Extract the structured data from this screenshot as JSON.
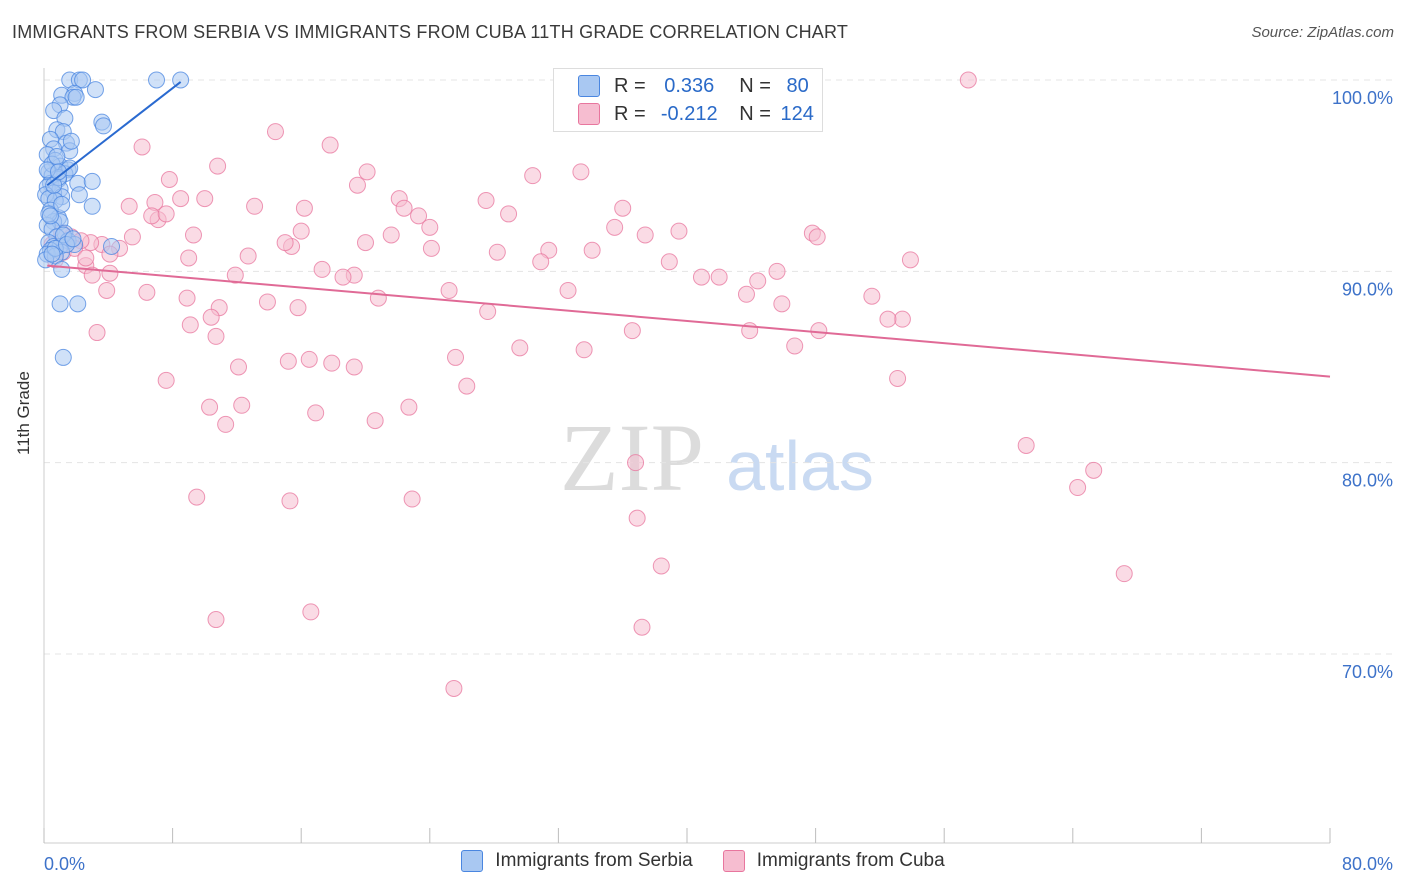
{
  "title": "IMMIGRANTS FROM SERBIA VS IMMIGRANTS FROM CUBA 11TH GRADE CORRELATION CHART",
  "source": "Source: ZipAtlas.com",
  "watermark": {
    "zip": "ZIP",
    "atlas": "atlas"
  },
  "colors": {
    "serbia": "#4a86e0",
    "serbia_fill": "#a9c8f2",
    "cuba": "#e8769e",
    "cuba_fill": "#f6bdd0",
    "tick_text": "#3d72c9"
  },
  "legend": {
    "rows": [
      {
        "r_label": "R =",
        "r_value": "0.336",
        "n_label": "N =",
        "n_value": "80"
      },
      {
        "r_label": "R =",
        "r_value": "-0.212",
        "n_label": "N =",
        "n_value": "124"
      }
    ]
  },
  "bottom_legend": {
    "serbia": "Immigrants from Serbia",
    "cuba": "Immigrants from Cuba"
  },
  "chart_data": {
    "type": "scatter",
    "xlabel": "",
    "ylabel": "11th Grade",
    "xlim": [
      0,
      80
    ],
    "ylim": [
      60,
      102
    ],
    "x_tick_labels": {
      "left": "0.0%",
      "right": "80.0%"
    },
    "y_ticks": [
      {
        "value": 100,
        "label": "100.0%"
      },
      {
        "value": 90,
        "label": "90.0%"
      },
      {
        "value": 80,
        "label": "80.0%"
      },
      {
        "value": 70,
        "label": "70.0%"
      }
    ],
    "grid": "horizontal dashed",
    "series": [
      {
        "name": "Immigrants from Serbia",
        "trend": {
          "x": [
            0.2,
            8.5
          ],
          "y": [
            94.5,
            99.9
          ]
        },
        "points": [
          [
            1.6,
            100
          ],
          [
            2.2,
            100
          ],
          [
            2.4,
            100
          ],
          [
            7.0,
            100
          ],
          [
            8.5,
            100
          ],
          [
            1.9,
            99.3
          ],
          [
            1.1,
            99.2
          ],
          [
            3.2,
            99.5
          ],
          [
            1.8,
            99.1
          ],
          [
            1.0,
            98.7
          ],
          [
            0.6,
            98.4
          ],
          [
            1.3,
            98.0
          ],
          [
            3.6,
            97.8
          ],
          [
            3.7,
            97.6
          ],
          [
            0.8,
            97.4
          ],
          [
            1.2,
            97.3
          ],
          [
            0.4,
            96.9
          ],
          [
            1.4,
            96.7
          ],
          [
            0.6,
            96.4
          ],
          [
            1.6,
            96.3
          ],
          [
            0.2,
            96.1
          ],
          [
            0.7,
            95.8
          ],
          [
            1.0,
            95.5
          ],
          [
            1.5,
            95.3
          ],
          [
            0.3,
            95.2
          ],
          [
            0.5,
            95.0
          ],
          [
            1.3,
            95.1
          ],
          [
            0.9,
            94.8
          ],
          [
            0.4,
            94.6
          ],
          [
            2.1,
            94.6
          ],
          [
            0.2,
            94.4
          ],
          [
            1.0,
            94.3
          ],
          [
            3.0,
            94.7
          ],
          [
            0.6,
            94.1
          ],
          [
            0.1,
            94.0
          ],
          [
            1.1,
            93.9
          ],
          [
            2.2,
            94.0
          ],
          [
            0.3,
            93.8
          ],
          [
            0.7,
            93.7
          ],
          [
            3.0,
            93.4
          ],
          [
            0.4,
            93.2
          ],
          [
            0.9,
            92.8
          ],
          [
            0.6,
            92.6
          ],
          [
            1.0,
            92.6
          ],
          [
            0.2,
            92.4
          ],
          [
            0.5,
            92.2
          ],
          [
            1.3,
            92.0
          ],
          [
            0.8,
            91.8
          ],
          [
            1.5,
            91.6
          ],
          [
            0.3,
            91.5
          ],
          [
            1.9,
            91.4
          ],
          [
            0.6,
            91.3
          ],
          [
            1.0,
            91.3
          ],
          [
            4.2,
            91.3
          ],
          [
            0.4,
            91.1
          ],
          [
            1.1,
            91.0
          ],
          [
            0.2,
            90.9
          ],
          [
            0.7,
            90.8
          ],
          [
            0.1,
            90.6
          ],
          [
            1.1,
            90.1
          ],
          [
            1.0,
            88.3
          ],
          [
            2.1,
            88.3
          ],
          [
            1.2,
            85.5
          ],
          [
            0.5,
            95.6
          ],
          [
            0.8,
            96.0
          ],
          [
            1.7,
            96.8
          ],
          [
            2.0,
            99.1
          ],
          [
            0.3,
            93.0
          ],
          [
            0.9,
            94.9
          ],
          [
            1.6,
            95.4
          ],
          [
            0.4,
            92.9
          ],
          [
            1.2,
            91.9
          ],
          [
            0.7,
            91.2
          ],
          [
            1.4,
            91.4
          ],
          [
            0.5,
            90.9
          ],
          [
            0.2,
            95.3
          ],
          [
            1.1,
            93.5
          ],
          [
            0.6,
            94.5
          ],
          [
            1.8,
            91.7
          ],
          [
            0.9,
            95.2
          ]
        ]
      },
      {
        "name": "Immigrants from Cuba",
        "trend": {
          "x": [
            0.2,
            80
          ],
          "y": [
            90.3,
            84.5
          ]
        },
        "points": [
          [
            57.5,
            100
          ],
          [
            14.4,
            97.3
          ],
          [
            6.1,
            96.5
          ],
          [
            17.8,
            96.6
          ],
          [
            10.8,
            95.5
          ],
          [
            20.1,
            95.2
          ],
          [
            33.4,
            95.2
          ],
          [
            30.4,
            95.0
          ],
          [
            7.8,
            94.8
          ],
          [
            19.5,
            94.5
          ],
          [
            22.1,
            93.8
          ],
          [
            10.0,
            93.8
          ],
          [
            8.5,
            93.8
          ],
          [
            27.5,
            93.7
          ],
          [
            16.2,
            93.3
          ],
          [
            5.3,
            93.4
          ],
          [
            36.0,
            93.3
          ],
          [
            13.1,
            93.4
          ],
          [
            6.9,
            93.6
          ],
          [
            23.3,
            92.9
          ],
          [
            7.1,
            92.7
          ],
          [
            28.9,
            93.0
          ],
          [
            24.0,
            92.3
          ],
          [
            6.7,
            92.9
          ],
          [
            35.5,
            92.3
          ],
          [
            7.6,
            93.0
          ],
          [
            39.5,
            92.1
          ],
          [
            16.0,
            92.1
          ],
          [
            9.3,
            91.9
          ],
          [
            47.8,
            92.0
          ],
          [
            21.6,
            91.9
          ],
          [
            48.1,
            91.8
          ],
          [
            37.4,
            91.9
          ],
          [
            15.4,
            91.3
          ],
          [
            5.5,
            91.8
          ],
          [
            3.6,
            91.4
          ],
          [
            20.0,
            91.5
          ],
          [
            15.0,
            91.5
          ],
          [
            2.9,
            91.5
          ],
          [
            28.2,
            91.0
          ],
          [
            4.7,
            91.2
          ],
          [
            31.4,
            91.1
          ],
          [
            24.1,
            91.2
          ],
          [
            34.1,
            91.1
          ],
          [
            4.1,
            90.9
          ],
          [
            53.9,
            90.6
          ],
          [
            9.0,
            90.7
          ],
          [
            17.3,
            90.1
          ],
          [
            30.9,
            90.5
          ],
          [
            38.9,
            90.5
          ],
          [
            2.6,
            90.3
          ],
          [
            45.6,
            90.0
          ],
          [
            40.9,
            89.7
          ],
          [
            42.0,
            89.7
          ],
          [
            19.3,
            89.8
          ],
          [
            18.6,
            89.7
          ],
          [
            44.4,
            89.5
          ],
          [
            3.0,
            89.8
          ],
          [
            4.1,
            89.9
          ],
          [
            11.9,
            89.8
          ],
          [
            25.2,
            89.0
          ],
          [
            32.6,
            89.0
          ],
          [
            43.7,
            88.8
          ],
          [
            51.5,
            88.7
          ],
          [
            6.4,
            88.9
          ],
          [
            20.8,
            88.6
          ],
          [
            13.9,
            88.4
          ],
          [
            8.9,
            88.6
          ],
          [
            45.9,
            88.3
          ],
          [
            10.9,
            88.1
          ],
          [
            15.8,
            88.1
          ],
          [
            27.6,
            87.9
          ],
          [
            10.4,
            87.6
          ],
          [
            53.4,
            87.5
          ],
          [
            52.5,
            87.5
          ],
          [
            43.9,
            86.9
          ],
          [
            36.6,
            86.9
          ],
          [
            3.3,
            86.8
          ],
          [
            48.2,
            86.9
          ],
          [
            10.7,
            86.6
          ],
          [
            29.6,
            86.0
          ],
          [
            46.7,
            86.1
          ],
          [
            33.6,
            85.9
          ],
          [
            15.2,
            85.3
          ],
          [
            25.6,
            85.5
          ],
          [
            17.9,
            85.2
          ],
          [
            19.3,
            85.0
          ],
          [
            16.5,
            85.4
          ],
          [
            12.1,
            85.0
          ],
          [
            53.1,
            84.4
          ],
          [
            7.6,
            84.3
          ],
          [
            26.3,
            84.0
          ],
          [
            10.3,
            82.9
          ],
          [
            12.3,
            83.0
          ],
          [
            22.7,
            82.9
          ],
          [
            16.9,
            82.6
          ],
          [
            20.6,
            82.2
          ],
          [
            11.3,
            82.0
          ],
          [
            61.1,
            80.9
          ],
          [
            36.8,
            80.0
          ],
          [
            65.3,
            79.6
          ],
          [
            64.3,
            78.7
          ],
          [
            9.5,
            78.2
          ],
          [
            15.3,
            78.0
          ],
          [
            22.9,
            78.1
          ],
          [
            36.9,
            77.1
          ],
          [
            38.4,
            74.6
          ],
          [
            67.2,
            74.2
          ],
          [
            10.7,
            71.8
          ],
          [
            16.6,
            72.2
          ],
          [
            37.2,
            71.4
          ],
          [
            25.5,
            68.2
          ],
          [
            1.7,
            91.8
          ],
          [
            2.3,
            91.6
          ],
          [
            1.2,
            91.0
          ],
          [
            0.7,
            90.6
          ],
          [
            1.9,
            91.2
          ],
          [
            2.6,
            90.7
          ],
          [
            0.5,
            91.4
          ],
          [
            1.1,
            92.0
          ],
          [
            3.9,
            89.0
          ],
          [
            12.7,
            90.8
          ],
          [
            22.4,
            93.3
          ],
          [
            9.1,
            87.2
          ]
        ]
      }
    ]
  }
}
